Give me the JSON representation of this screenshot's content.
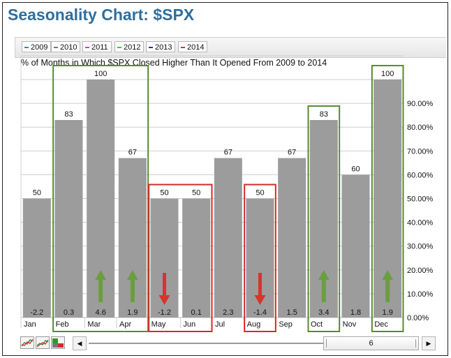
{
  "page": {
    "title": "Seasonality Chart: $SPX"
  },
  "legend": [
    {
      "label": "2009",
      "color": "#1f8fbf"
    },
    {
      "label": "2010",
      "color": "#777777"
    },
    {
      "label": "2011",
      "color": "#d43fd4"
    },
    {
      "label": "2012",
      "color": "#33cc33"
    },
    {
      "label": "2013",
      "color": "#2b2bbf"
    },
    {
      "label": "2014",
      "color": "#e0302a"
    }
  ],
  "chart_data": {
    "type": "bar",
    "title": "% of Months in Which $SPX Closed Higher Than It Opened From 2009 to 2014",
    "categories": [
      "Jan",
      "Feb",
      "Mar",
      "Apr",
      "May",
      "Jun",
      "Jul",
      "Aug",
      "Sep",
      "Oct",
      "Nov",
      "Dec"
    ],
    "values": [
      50,
      83,
      100,
      67,
      50,
      50,
      67,
      50,
      67,
      83,
      60,
      100
    ],
    "bottom_labels": [
      "-2.2",
      "0.3",
      "4.6",
      "1.9",
      "-1.2",
      "0.1",
      "2.3",
      "-1.4",
      "1.5",
      "3.4",
      "1.8",
      "1.9"
    ],
    "y_ticks": [
      "0.00%",
      "10.00%",
      "20.00%",
      "30.00%",
      "40.00%",
      "50.00%",
      "60.00%",
      "70.00%",
      "80.00%",
      "90.00%"
    ],
    "ylim": [
      0,
      100
    ],
    "grid": true,
    "bar_color": "#9c9c9c",
    "highlight_groups": [
      {
        "color": "#5a8a2e",
        "months": [
          "Feb",
          "Mar",
          "Apr"
        ]
      },
      {
        "color": "#d42a2a",
        "months": [
          "May",
          "Jun"
        ]
      },
      {
        "color": "#d42a2a",
        "months": [
          "Aug"
        ]
      },
      {
        "color": "#5a8a2e",
        "months": [
          "Oct"
        ]
      },
      {
        "color": "#5a8a2e",
        "months": [
          "Dec"
        ]
      }
    ],
    "arrows": [
      {
        "month": "Mar",
        "direction": "up",
        "color": "#6b9e3f"
      },
      {
        "month": "Apr",
        "direction": "up",
        "color": "#6b9e3f"
      },
      {
        "month": "May",
        "direction": "down",
        "color": "#d6352b"
      },
      {
        "month": "Aug",
        "direction": "down",
        "color": "#d6352b"
      },
      {
        "month": "Oct",
        "direction": "up",
        "color": "#6b9e3f"
      },
      {
        "month": "Dec",
        "direction": "up",
        "color": "#6b9e3f"
      }
    ]
  },
  "controls": {
    "scroll_value": "6",
    "left_arrow": "◀",
    "right_arrow": "▶"
  }
}
